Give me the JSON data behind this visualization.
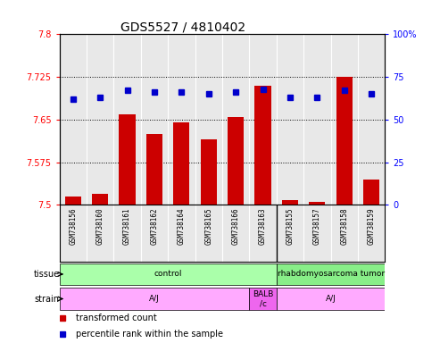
{
  "title": "GDS5527 / 4810402",
  "samples": [
    "GSM738156",
    "GSM738160",
    "GSM738161",
    "GSM738162",
    "GSM738164",
    "GSM738165",
    "GSM738166",
    "GSM738163",
    "GSM738155",
    "GSM738157",
    "GSM738158",
    "GSM738159"
  ],
  "transformed_count": [
    7.515,
    7.52,
    7.66,
    7.625,
    7.645,
    7.615,
    7.655,
    7.71,
    7.508,
    7.505,
    7.725,
    7.545
  ],
  "percentile_rank": [
    62,
    63,
    67,
    66,
    66,
    65,
    66,
    68,
    63,
    63,
    67,
    65
  ],
  "ylim_left": [
    7.5,
    7.8
  ],
  "ylim_right": [
    0,
    100
  ],
  "yticks_left": [
    7.5,
    7.575,
    7.65,
    7.725,
    7.8
  ],
  "yticks_right": [
    0,
    25,
    50,
    75,
    100
  ],
  "ytick_labels_left": [
    "7.5",
    "7.575",
    "7.65",
    "7.725",
    "7.8"
  ],
  "ytick_labels_right": [
    "0",
    "25",
    "50",
    "75",
    "100%"
  ],
  "hlines": [
    7.575,
    7.65,
    7.725
  ],
  "bar_color": "#cc0000",
  "dot_color": "#0000cc",
  "tissue_groups": [
    {
      "label": "control",
      "start": 0,
      "end": 8,
      "color": "#aaffaa"
    },
    {
      "label": "rhabdomyosarcoma tumor",
      "start": 8,
      "end": 12,
      "color": "#88ee88"
    }
  ],
  "strain_groups": [
    {
      "label": "A/J",
      "start": 0,
      "end": 7,
      "color": "#ffaaff"
    },
    {
      "label": "BALB\n/c",
      "start": 7,
      "end": 8,
      "color": "#ee66ee"
    },
    {
      "label": "A/J",
      "start": 8,
      "end": 12,
      "color": "#ffaaff"
    }
  ],
  "legend_items": [
    {
      "label": "transformed count",
      "color": "#cc0000"
    },
    {
      "label": "percentile rank within the sample",
      "color": "#0000cc"
    }
  ],
  "background_color": "#ffffff",
  "plot_bg_color": "#e8e8e8",
  "title_fontsize": 10,
  "bar_width": 0.6
}
